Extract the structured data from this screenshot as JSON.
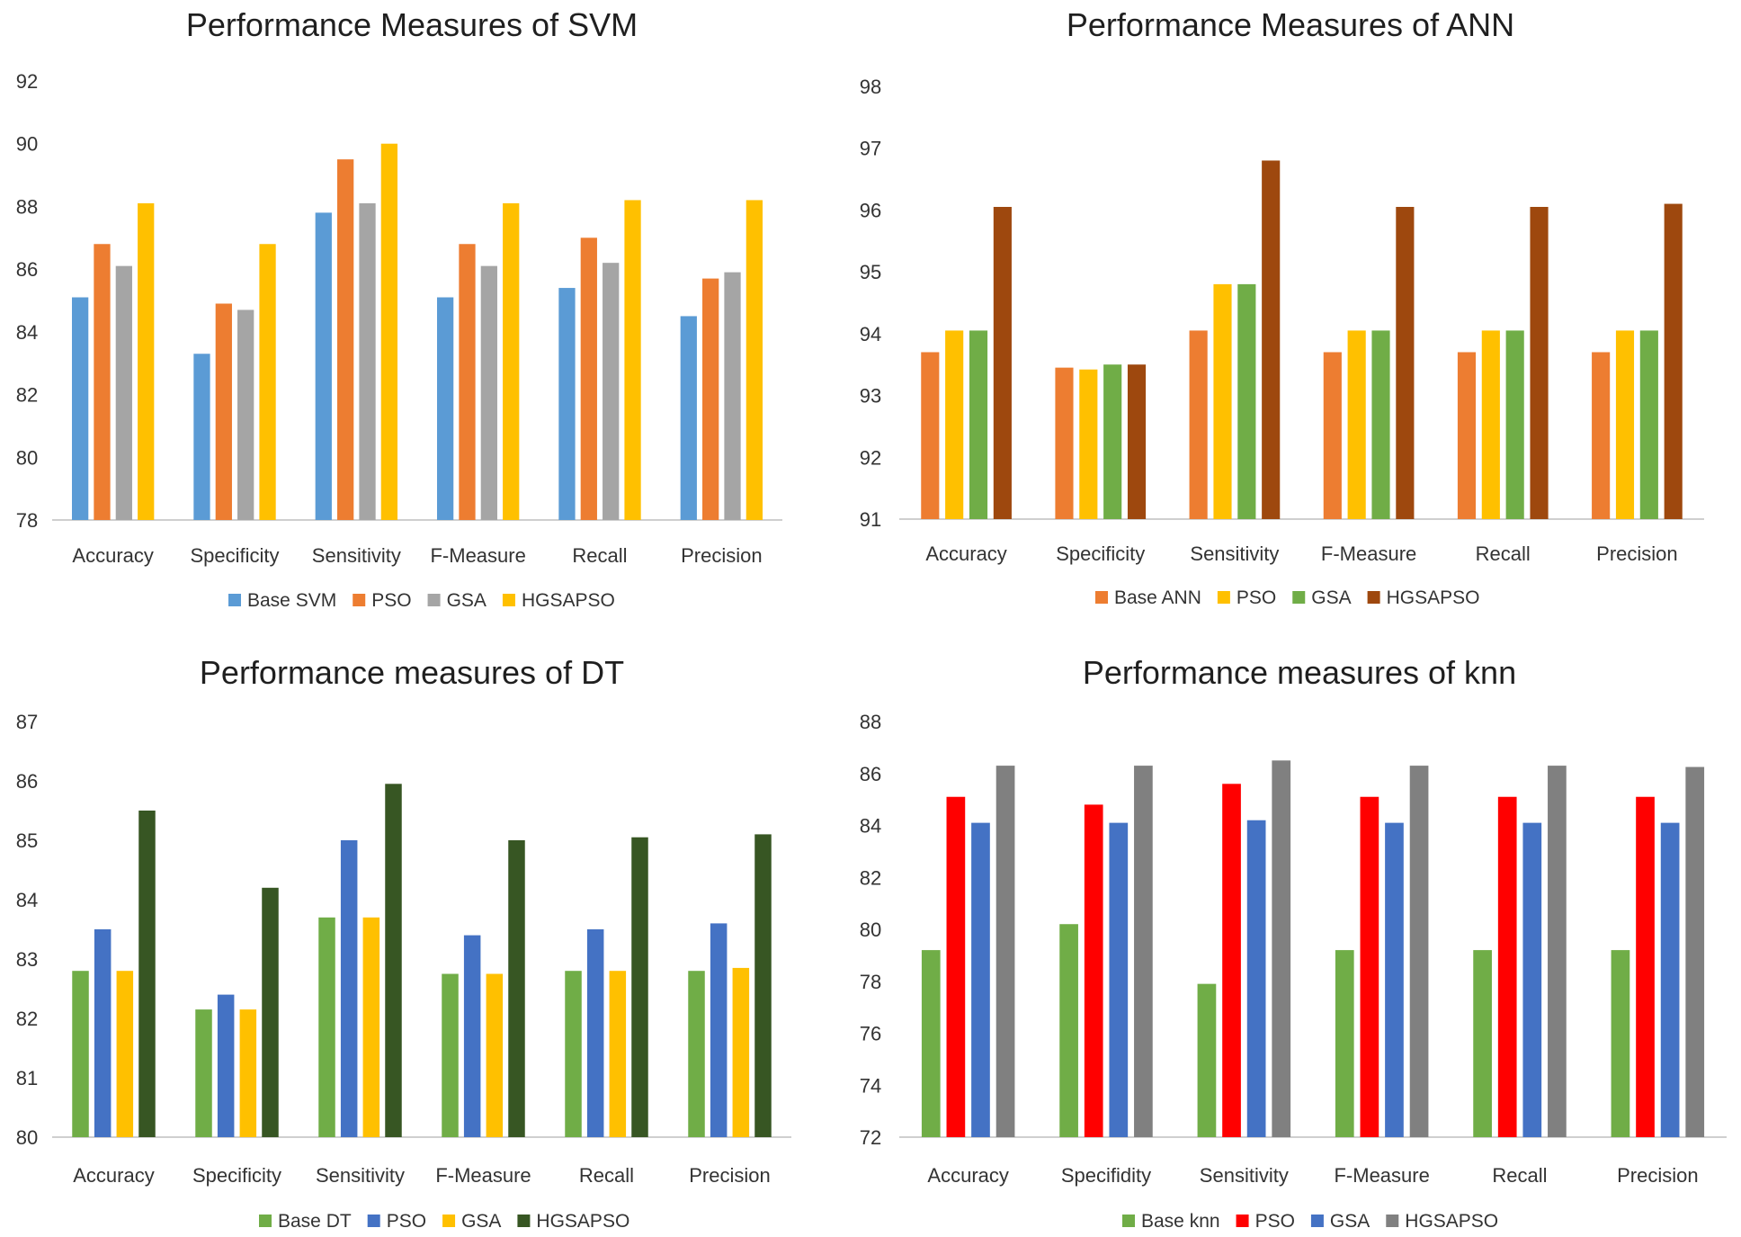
{
  "chart_data": [
    {
      "type": "bar",
      "title": "Performance Measures of SVM",
      "categories": [
        "Accuracy",
        "Specificity",
        "Sensitivity",
        "F-Measure",
        "Recall",
        "Precision"
      ],
      "ylim": [
        78,
        92
      ],
      "yticks": [
        78,
        80,
        82,
        84,
        86,
        88,
        90,
        92
      ],
      "grid": false,
      "legend_position": "bottom",
      "series": [
        {
          "name": "Base SVM",
          "color": "#5b9bd5",
          "values": [
            85.1,
            83.3,
            87.8,
            85.1,
            85.4,
            84.5
          ]
        },
        {
          "name": "PSO",
          "color": "#ed7d31",
          "values": [
            86.8,
            84.9,
            89.5,
            86.8,
            87.0,
            85.7
          ]
        },
        {
          "name": "GSA",
          "color": "#a5a5a5",
          "values": [
            86.1,
            84.7,
            88.1,
            86.1,
            86.2,
            85.9
          ]
        },
        {
          "name": "HGSAPSO",
          "color": "#ffc000",
          "values": [
            88.1,
            86.8,
            90.0,
            88.1,
            88.2,
            88.2
          ]
        }
      ]
    },
    {
      "type": "bar",
      "title": "Performance Measures of ANN",
      "categories": [
        "Accuracy",
        "Specificity",
        "Sensitivity",
        "F-Measure",
        "Recall",
        "Precision"
      ],
      "ylim": [
        91,
        98
      ],
      "yticks": [
        91,
        92,
        93,
        94,
        95,
        96,
        97,
        98
      ],
      "grid": false,
      "legend_position": "bottom",
      "series": [
        {
          "name": "Base ANN",
          "color": "#ed7d31",
          "values": [
            93.7,
            93.45,
            94.05,
            93.7,
            93.7,
            93.7
          ]
        },
        {
          "name": "PSO",
          "color": "#ffc000",
          "values": [
            94.05,
            93.42,
            94.8,
            94.05,
            94.05,
            94.05
          ]
        },
        {
          "name": "GSA",
          "color": "#70ad47",
          "values": [
            94.05,
            93.5,
            94.8,
            94.05,
            94.05,
            94.05
          ]
        },
        {
          "name": "HGSAPSO",
          "color": "#9e480e",
          "values": [
            96.05,
            93.5,
            96.8,
            96.05,
            96.05,
            96.1
          ]
        }
      ]
    },
    {
      "type": "bar",
      "title": "Performance measures of DT",
      "categories": [
        "Accuracy",
        "Specificity",
        "Sensitivity",
        "F-Measure",
        "Recall",
        "Precision"
      ],
      "ylim": [
        80,
        87
      ],
      "yticks": [
        80,
        81,
        82,
        83,
        84,
        85,
        86,
        87
      ],
      "grid": false,
      "legend_position": "bottom",
      "series": [
        {
          "name": "Base DT",
          "color": "#70ad47",
          "values": [
            82.8,
            82.15,
            83.7,
            82.75,
            82.8,
            82.8
          ]
        },
        {
          "name": "PSO",
          "color": "#4472c4",
          "values": [
            83.5,
            82.4,
            85.0,
            83.4,
            83.5,
            83.6
          ]
        },
        {
          "name": "GSA",
          "color": "#ffc000",
          "values": [
            82.8,
            82.15,
            83.7,
            82.75,
            82.8,
            82.85
          ]
        },
        {
          "name": "HGSAPSO",
          "color": "#375623",
          "values": [
            85.5,
            84.2,
            85.95,
            85.0,
            85.05,
            85.1
          ]
        }
      ]
    },
    {
      "type": "bar",
      "title": "Performance measures of knn",
      "categories": [
        "Accuracy",
        "Specifidity",
        "Sensitivity",
        "F-Measure",
        "Recall",
        "Precision"
      ],
      "ylim": [
        72,
        88
      ],
      "yticks": [
        72,
        74,
        76,
        78,
        80,
        82,
        84,
        86,
        88
      ],
      "grid": false,
      "legend_position": "bottom",
      "series": [
        {
          "name": "Base knn",
          "color": "#70ad47",
          "values": [
            79.2,
            80.2,
            77.9,
            79.2,
            79.2,
            79.2
          ]
        },
        {
          "name": "PSO",
          "color": "#ff0000",
          "values": [
            85.1,
            84.8,
            85.6,
            85.1,
            85.1,
            85.1
          ]
        },
        {
          "name": "GSA",
          "color": "#4472c4",
          "values": [
            84.1,
            84.1,
            84.2,
            84.1,
            84.1,
            84.1
          ]
        },
        {
          "name": "HGSAPSO",
          "color": "#808080",
          "values": [
            86.3,
            86.3,
            86.5,
            86.3,
            86.3,
            86.25
          ]
        }
      ]
    }
  ]
}
